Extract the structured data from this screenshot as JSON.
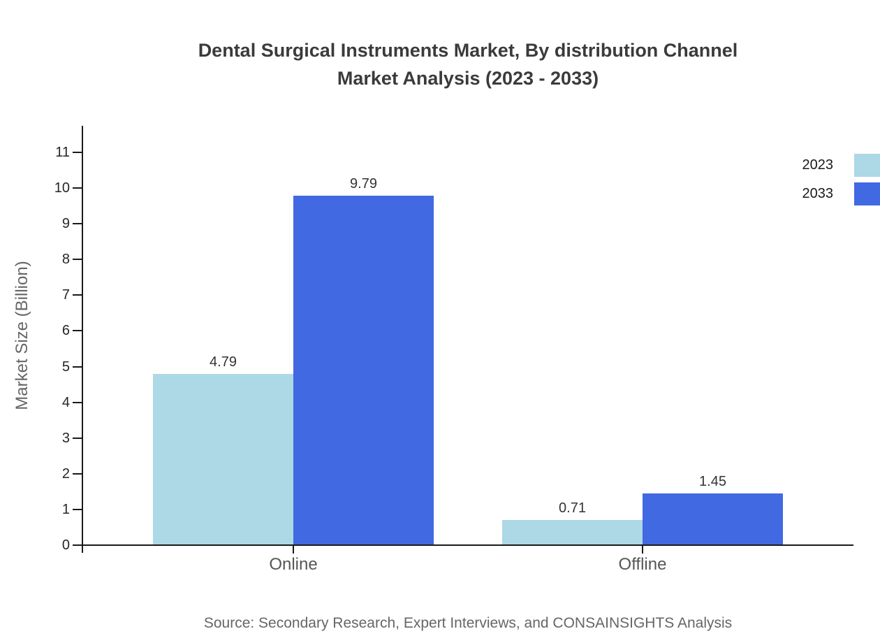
{
  "title": {
    "line1": "Dental Surgical Instruments Market, By distribution Channel",
    "line2": "Market Analysis (2023 - 2033)"
  },
  "source": "Source: Secondary Research, Expert Interviews, and CONSAINSIGHTS Analysis",
  "chart_data": {
    "type": "bar",
    "title": "Dental Surgical Instruments Market, By distribution Channel Market Analysis (2023 - 2033)",
    "categories": [
      "Online",
      "Offline"
    ],
    "series": [
      {
        "name": "2023",
        "color": "#ADD8E6",
        "values": [
          4.79,
          0.71
        ]
      },
      {
        "name": "2033",
        "color": "#4169E1",
        "values": [
          9.79,
          1.45
        ]
      }
    ],
    "xlabel": "",
    "ylabel": "Market Size (Billion)",
    "ylim": [
      0,
      11
    ],
    "yticks": [
      0,
      1,
      2,
      3,
      4,
      5,
      6,
      7,
      8,
      9,
      10,
      11
    ],
    "grid": false,
    "legend_position": "top-right",
    "axis_color": "#1a1a1a",
    "label_color": "#333333",
    "muted_color": "#666666"
  }
}
